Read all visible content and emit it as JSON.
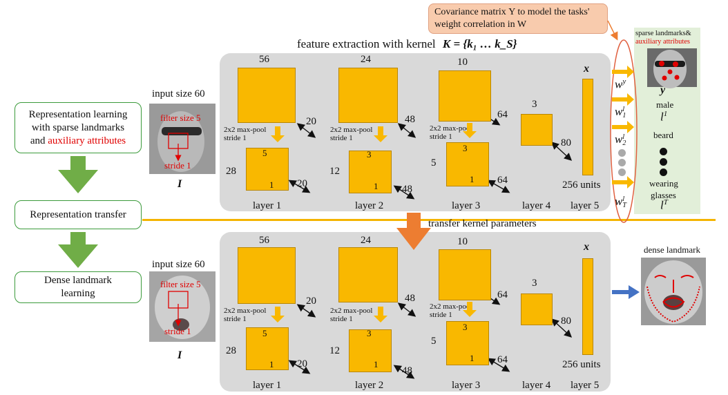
{
  "title": {
    "prefix": "feature extraction with kernel",
    "formula": "K = {k₁ … k_S}"
  },
  "note": "Covariance matrix Υ to model the tasks' weight correlation in W",
  "steps": {
    "step1_line1": "Representation learning",
    "step1_line2": "with sparse landmarks",
    "step1_line3_a": "and",
    "step1_line3_b": "auxiliary attributes",
    "step2": "Representation transfer",
    "step3_line1": "Dense landmark",
    "step3_line2": "learning"
  },
  "transfer_label": "transfer kernel parameters",
  "network": {
    "input_size": "input size 60",
    "filter_size": "filter size 5",
    "stride": "stride 1",
    "input_symbol": "I",
    "layers": [
      {
        "name": "layer 1",
        "top": "56",
        "depth": "20",
        "pooled": "28",
        "kernel": "5",
        "k_stride": "1",
        "pooled_depth": "20"
      },
      {
        "name": "layer 2",
        "top": "24",
        "depth": "48",
        "pooled": "12",
        "kernel": "3",
        "k_stride": "1",
        "pooled_depth": "48"
      },
      {
        "name": "layer 3",
        "top": "10",
        "depth": "64",
        "pooled": "5",
        "kernel": "3",
        "k_stride": "1",
        "pooled_depth": "64"
      },
      {
        "name": "layer 4",
        "top": "3",
        "depth": "80"
      },
      {
        "name": "layer 5",
        "units": "256 units",
        "symbol": "x"
      }
    ],
    "pool_line1": "2x2 max-pool",
    "pool_line2": "stride 1"
  },
  "weights": {
    "wy": "w",
    "wy_sup": "y",
    "w1": "w",
    "w1_sup": "l",
    "w1_sub": "1",
    "w2": "w",
    "w2_sup": "l",
    "w2_sub": "2",
    "wT": "w",
    "wT_sup": "l",
    "wT_sub": "T"
  },
  "attributes": {
    "header_line1": "sparse landmarks&",
    "header_line2": "auxiliary attributes",
    "y": "y",
    "male": "male",
    "l1": "l",
    "l1_sup": "1",
    "beard": "beard",
    "wearing": "wearing",
    "glasses": "glasses",
    "lT": "l",
    "lT_sup": "T"
  },
  "dense_label": "dense landmark",
  "colors": {
    "panel": "#d9d9d9",
    "feature": "#f9b800",
    "green_arrow": "#70ad47",
    "orange_arrow": "#ed7d31",
    "divider": "#f4b400",
    "blue_arrow": "#4472c4",
    "landmark": "#e00000",
    "attr_bg": "#e2efd9"
  }
}
